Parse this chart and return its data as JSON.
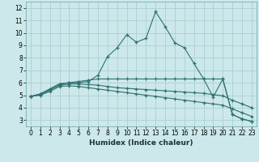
{
  "xlabel": "Humidex (Indice chaleur)",
  "xlim": [
    -0.5,
    23.5
  ],
  "ylim": [
    2.5,
    12.5
  ],
  "xticks": [
    0,
    1,
    2,
    3,
    4,
    5,
    6,
    7,
    8,
    9,
    10,
    11,
    12,
    13,
    14,
    15,
    16,
    17,
    18,
    19,
    20,
    21,
    22,
    23
  ],
  "yticks": [
    3,
    4,
    5,
    6,
    7,
    8,
    9,
    10,
    11,
    12
  ],
  "bg_color": "#cce8ea",
  "grid_color": "#aacfd2",
  "line_color": "#2e7070",
  "series": [
    {
      "x": [
        0,
        1,
        2,
        3,
        4,
        5,
        6,
        7,
        8,
        9,
        10,
        11,
        12,
        13,
        14,
        15,
        16,
        17,
        18,
        19,
        20,
        21,
        22,
        23
      ],
      "y": [
        4.9,
        5.1,
        5.5,
        5.9,
        6.0,
        6.0,
        6.1,
        6.6,
        8.1,
        8.8,
        9.85,
        9.25,
        9.55,
        11.7,
        10.5,
        9.2,
        8.8,
        7.55,
        6.3,
        4.85,
        6.3,
        3.45,
        3.1,
        2.9
      ]
    },
    {
      "x": [
        0,
        1,
        2,
        3,
        4,
        5,
        6,
        7,
        8,
        9,
        10,
        11,
        12,
        13,
        14,
        15,
        16,
        17,
        18,
        19,
        20,
        21,
        22,
        23
      ],
      "y": [
        4.9,
        5.1,
        5.5,
        5.9,
        6.0,
        6.1,
        6.2,
        6.3,
        6.3,
        6.3,
        6.3,
        6.3,
        6.3,
        6.3,
        6.3,
        6.3,
        6.3,
        6.3,
        6.3,
        6.3,
        6.3,
        3.45,
        3.1,
        2.9
      ]
    },
    {
      "x": [
        0,
        1,
        2,
        3,
        4,
        5,
        6,
        7,
        8,
        9,
        10,
        11,
        12,
        13,
        14,
        15,
        16,
        17,
        18,
        19,
        20,
        21,
        22,
        23
      ],
      "y": [
        4.9,
        5.05,
        5.4,
        5.8,
        5.9,
        5.9,
        5.85,
        5.8,
        5.7,
        5.6,
        5.55,
        5.5,
        5.45,
        5.4,
        5.35,
        5.3,
        5.25,
        5.2,
        5.15,
        5.05,
        4.95,
        4.6,
        4.3,
        4.0
      ]
    },
    {
      "x": [
        0,
        1,
        2,
        3,
        4,
        5,
        6,
        7,
        8,
        9,
        10,
        11,
        12,
        13,
        14,
        15,
        16,
        17,
        18,
        19,
        20,
        21,
        22,
        23
      ],
      "y": [
        4.9,
        5.0,
        5.3,
        5.7,
        5.75,
        5.7,
        5.6,
        5.5,
        5.4,
        5.3,
        5.2,
        5.1,
        5.0,
        4.9,
        4.8,
        4.7,
        4.6,
        4.5,
        4.4,
        4.3,
        4.2,
        3.9,
        3.6,
        3.3
      ]
    }
  ]
}
